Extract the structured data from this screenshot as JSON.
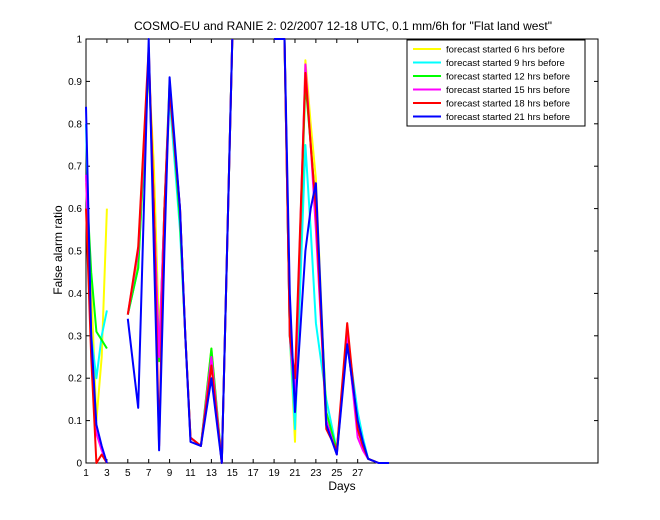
{
  "chart_data": {
    "type": "line",
    "title": "COSMO-EU and RANIE 2: 02/2007 12-18 UTC, 0.1 mm/6h for \"Flat land west\"",
    "xlabel": "Days",
    "ylabel": "False alarm ratio",
    "xlim": [
      1,
      50
    ],
    "ylim": [
      0,
      1
    ],
    "xticks": [
      1,
      3,
      5,
      7,
      9,
      11,
      13,
      15,
      17,
      19,
      21,
      23,
      25,
      27
    ],
    "yticks": [
      0,
      0.1,
      0.2,
      0.3,
      0.4,
      0.5,
      0.6,
      0.7,
      0.8,
      0.9,
      1
    ],
    "grid": false,
    "legend_position": "top-right",
    "series": [
      {
        "name": "forecast started 6 hrs before",
        "color": "#ffff00",
        "points": [
          [
            1,
            0.66
          ],
          [
            1.5,
            0.42
          ],
          [
            2,
            0.1
          ],
          [
            2.5,
            0.25
          ],
          [
            3,
            0.6
          ],
          [
            5,
            0.35
          ],
          [
            6,
            0.47
          ],
          [
            7,
            0.93
          ],
          [
            7.5,
            0.7
          ],
          [
            8,
            0.3
          ],
          [
            8.5,
            0.55
          ],
          [
            9,
            0.88
          ],
          [
            10,
            0.6
          ],
          [
            10.5,
            0.3
          ],
          [
            11,
            0.06
          ],
          [
            12,
            0.04
          ],
          [
            13,
            0.27
          ],
          [
            14,
            0.0
          ],
          [
            15,
            1.0
          ],
          [
            19,
            1.0
          ],
          [
            20,
            1.0
          ],
          [
            20.5,
            0.3
          ],
          [
            21,
            0.05
          ],
          [
            22,
            0.95
          ],
          [
            22.5,
            0.8
          ],
          [
            23,
            0.67
          ],
          [
            24,
            0.1
          ],
          [
            25,
            0.02
          ],
          [
            26,
            0.3
          ],
          [
            27,
            0.08
          ],
          [
            27.5,
            0.04
          ],
          [
            28,
            0.01
          ],
          [
            29,
            0.0
          ],
          [
            30,
            0.0
          ]
        ]
      },
      {
        "name": "forecast started 9 hrs before",
        "color": "#00ffff",
        "points": [
          [
            1,
            0.8
          ],
          [
            1.5,
            0.3
          ],
          [
            2,
            0.2
          ],
          [
            2.5,
            0.3
          ],
          [
            3,
            0.36
          ],
          [
            5,
            0.35
          ],
          [
            6,
            0.46
          ],
          [
            7,
            0.96
          ],
          [
            7.5,
            0.6
          ],
          [
            8,
            0.25
          ],
          [
            8.5,
            0.6
          ],
          [
            9,
            0.86
          ],
          [
            10,
            0.55
          ],
          [
            10.5,
            0.3
          ],
          [
            11,
            0.06
          ],
          [
            12,
            0.04
          ],
          [
            13,
            0.26
          ],
          [
            14,
            0.0
          ],
          [
            15,
            1.0
          ],
          [
            19,
            1.0
          ],
          [
            20,
            1.0
          ],
          [
            20.5,
            0.3
          ],
          [
            21,
            0.08
          ],
          [
            22,
            0.75
          ],
          [
            22.5,
            0.55
          ],
          [
            23,
            0.33
          ],
          [
            24,
            0.15
          ],
          [
            25,
            0.03
          ],
          [
            26,
            0.3
          ],
          [
            27,
            0.12
          ],
          [
            27.5,
            0.06
          ],
          [
            28,
            0.01
          ],
          [
            29,
            0.0
          ],
          [
            30,
            0.0
          ]
        ]
      },
      {
        "name": "forecast started 12 hrs before",
        "color": "#00ff00",
        "points": [
          [
            1,
            0.68
          ],
          [
            1.5,
            0.45
          ],
          [
            2,
            0.31
          ],
          [
            2.5,
            0.29
          ],
          [
            3,
            0.27
          ],
          [
            5,
            0.35
          ],
          [
            6,
            0.46
          ],
          [
            7,
            0.95
          ],
          [
            7.5,
            0.6
          ],
          [
            8,
            0.24
          ],
          [
            8.5,
            0.6
          ],
          [
            9,
            0.9
          ],
          [
            10,
            0.57
          ],
          [
            10.5,
            0.3
          ],
          [
            11,
            0.06
          ],
          [
            12,
            0.04
          ],
          [
            13,
            0.27
          ],
          [
            14,
            0.0
          ],
          [
            15,
            1.0
          ],
          [
            19,
            1.0
          ],
          [
            20,
            1.0
          ],
          [
            20.5,
            0.3
          ],
          [
            21,
            0.14
          ],
          [
            22,
            0.9
          ],
          [
            22.5,
            0.75
          ],
          [
            23,
            0.6
          ],
          [
            24,
            0.12
          ],
          [
            25,
            0.03
          ],
          [
            26,
            0.29
          ],
          [
            27,
            0.08
          ],
          [
            27.5,
            0.04
          ],
          [
            28,
            0.01
          ],
          [
            29,
            0.0
          ],
          [
            30,
            0.0
          ]
        ]
      },
      {
        "name": "forecast started 15 hrs before",
        "color": "#ff00ff",
        "points": [
          [
            1,
            0.68
          ],
          [
            1.5,
            0.3
          ],
          [
            2,
            0.07
          ],
          [
            2.5,
            0.03
          ],
          [
            3,
            0.0
          ],
          [
            5,
            0.35
          ],
          [
            6,
            0.5
          ],
          [
            7,
            0.96
          ],
          [
            7.5,
            0.6
          ],
          [
            8,
            0.25
          ],
          [
            8.5,
            0.6
          ],
          [
            9,
            0.89
          ],
          [
            10,
            0.6
          ],
          [
            10.5,
            0.3
          ],
          [
            11,
            0.06
          ],
          [
            12,
            0.04
          ],
          [
            13,
            0.25
          ],
          [
            14,
            0.0
          ],
          [
            15,
            1.0
          ],
          [
            19,
            1.0
          ],
          [
            20,
            1.0
          ],
          [
            20.5,
            0.3
          ],
          [
            21,
            0.15
          ],
          [
            22,
            0.94
          ],
          [
            22.5,
            0.75
          ],
          [
            23,
            0.55
          ],
          [
            24,
            0.1
          ],
          [
            25,
            0.02
          ],
          [
            26,
            0.3
          ],
          [
            27,
            0.06
          ],
          [
            27.5,
            0.03
          ],
          [
            28,
            0.01
          ],
          [
            29,
            0.0
          ],
          [
            30,
            0.0
          ]
        ]
      },
      {
        "name": "forecast started 18 hrs before",
        "color": "#ff0000",
        "points": [
          [
            1,
            0.6
          ],
          [
            1.5,
            0.25
          ],
          [
            2,
            0.0
          ],
          [
            2.5,
            0.02
          ],
          [
            3,
            0.0
          ],
          [
            5,
            0.35
          ],
          [
            6,
            0.51
          ],
          [
            7,
            0.98
          ],
          [
            7.5,
            0.6
          ],
          [
            8,
            0.04
          ],
          [
            8.5,
            0.6
          ],
          [
            9,
            0.88
          ],
          [
            10,
            0.6
          ],
          [
            10.5,
            0.3
          ],
          [
            11,
            0.06
          ],
          [
            12,
            0.04
          ],
          [
            13,
            0.23
          ],
          [
            14,
            0.0
          ],
          [
            15,
            1.0
          ],
          [
            19,
            1.0
          ],
          [
            20,
            1.0
          ],
          [
            20.5,
            0.3
          ],
          [
            21,
            0.2
          ],
          [
            22,
            0.92
          ],
          [
            22.5,
            0.75
          ],
          [
            23,
            0.6
          ],
          [
            24,
            0.08
          ],
          [
            25,
            0.03
          ],
          [
            26,
            0.33
          ],
          [
            27,
            0.08
          ],
          [
            27.5,
            0.04
          ],
          [
            28,
            0.01
          ],
          [
            29,
            0.0
          ],
          [
            30,
            0.0
          ]
        ]
      },
      {
        "name": "forecast started 21 hrs before",
        "color": "#0000ff",
        "points": [
          [
            1,
            0.84
          ],
          [
            1.5,
            0.3
          ],
          [
            2,
            0.09
          ],
          [
            2.5,
            0.04
          ],
          [
            3,
            0.0
          ],
          [
            5,
            0.34
          ],
          [
            6,
            0.13
          ],
          [
            7,
            1.0
          ],
          [
            7.5,
            0.5
          ],
          [
            8,
            0.03
          ],
          [
            8.5,
            0.5
          ],
          [
            9,
            0.91
          ],
          [
            10,
            0.6
          ],
          [
            10.5,
            0.3
          ],
          [
            11,
            0.05
          ],
          [
            12,
            0.04
          ],
          [
            13,
            0.2
          ],
          [
            14,
            0.0
          ],
          [
            15,
            1.0
          ],
          [
            19,
            1.0
          ],
          [
            20,
            1.0
          ],
          [
            20.5,
            0.4
          ],
          [
            21,
            0.12
          ],
          [
            22,
            0.5
          ],
          [
            22.5,
            0.6
          ],
          [
            23,
            0.66
          ],
          [
            24,
            0.09
          ],
          [
            25,
            0.02
          ],
          [
            26,
            0.28
          ],
          [
            27,
            0.1
          ],
          [
            27.5,
            0.05
          ],
          [
            28,
            0.01
          ],
          [
            29,
            0.0
          ],
          [
            30,
            0.0
          ]
        ]
      }
    ]
  }
}
